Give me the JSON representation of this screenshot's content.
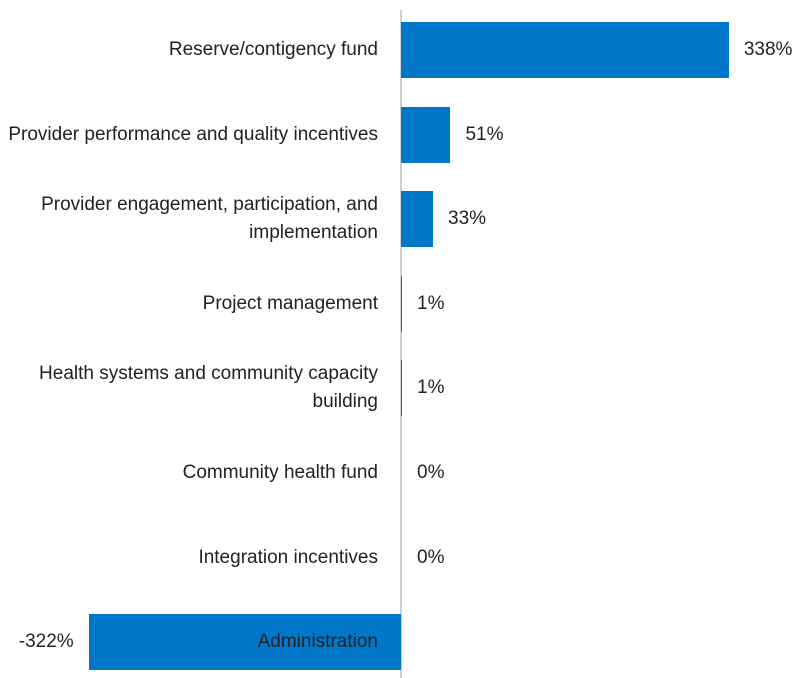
{
  "chart_data": {
    "type": "bar",
    "orientation": "horizontal",
    "categories": [
      "Reserve/contigency fund",
      "Provider performance and quality incentives",
      "Provider engagement, participation, and implementation",
      "Project management",
      "Health systems and community capacity building",
      "Community health fund",
      "Integration incentives",
      "Administration"
    ],
    "values": [
      338,
      51,
      33,
      1,
      1,
      0,
      0,
      -322
    ],
    "value_labels": [
      "338%",
      "51%",
      "33%",
      "1%",
      "1%",
      "0%",
      "0%",
      "-322%"
    ],
    "color": "#0077c8"
  }
}
